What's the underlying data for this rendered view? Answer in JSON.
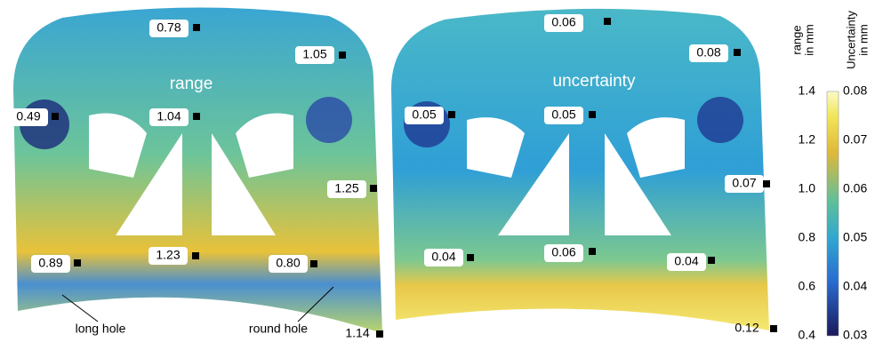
{
  "panels": [
    {
      "title": "range",
      "labels": [
        "0.78",
        "1.05",
        "0.49",
        "1.04",
        "1.25",
        "0.89",
        "1.23",
        "0.80",
        "1.14"
      ],
      "notes": [
        "long hole",
        "round hole"
      ]
    },
    {
      "title": "uncertainty",
      "labels": [
        "0.06",
        "0.08",
        "0.05",
        "0.05",
        "0.07",
        "0.04",
        "0.06",
        "0.04",
        "0.12"
      ]
    }
  ],
  "colorbar": {
    "left_header": [
      "range",
      "in mm"
    ],
    "right_header": [
      "Uncertainty",
      "in mm"
    ],
    "left_ticks": [
      "1.4",
      "1.2",
      "1.0",
      "0.8",
      "0.6",
      "0.4"
    ],
    "right_ticks": [
      "0.08",
      "0.07",
      "0.06",
      "0.05",
      "0.04",
      "0.03"
    ]
  }
}
